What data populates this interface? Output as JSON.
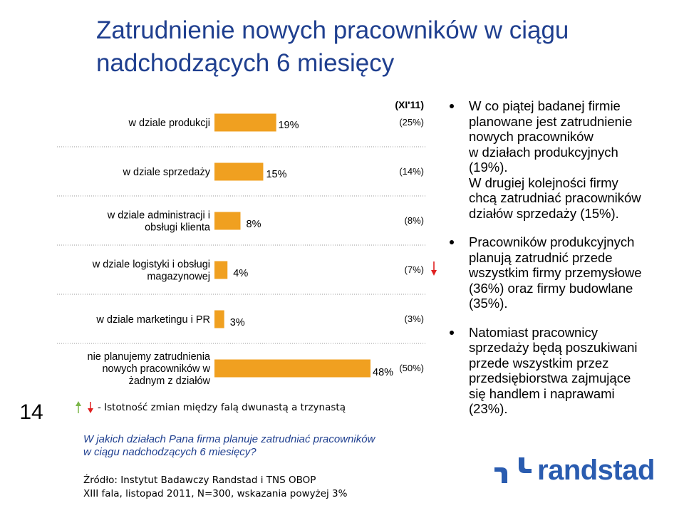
{
  "slide": {
    "title_line1": "Zatrudnienie nowych pracowników w ciągu",
    "title_line2": "nadchodzących 6 miesięcy",
    "page_number": "14"
  },
  "chart_data": {
    "type": "bar",
    "orientation": "horizontal",
    "comparison_header": "(XI'11)",
    "categories": [
      [
        "w dziale produkcji"
      ],
      [
        "w dziale sprzedaży"
      ],
      [
        "w dziale administracji i",
        "obsługi klienta"
      ],
      [
        "w dziale logistyki i obsługi",
        "magazynowej"
      ],
      [
        "w dziale marketingu i PR"
      ],
      [
        "nie planujemy zatrudnienia",
        "nowych pracowników w",
        "żadnym z działów"
      ]
    ],
    "values": [
      19,
      15,
      8,
      4,
      3,
      48
    ],
    "value_labels": [
      "19%",
      "15%",
      "8%",
      "4%",
      "3%",
      "48%"
    ],
    "comparison_labels": [
      "(25%)",
      "(14%)",
      "(8%)",
      "(7%)",
      "(3%)",
      "(50%)"
    ],
    "change_markers": [
      "",
      "",
      "",
      "down",
      "",
      ""
    ],
    "xlim": [
      0,
      48
    ],
    "bar_color": "#f0a020",
    "up_color": "#7ab648",
    "down_color": "#e02020"
  },
  "legend": {
    "text": "- Istotność zmian między falą dwunastą a trzynastą"
  },
  "bullets": [
    [
      "W co piątej badanej firmie",
      "planowane jest zatrudnienie",
      "nowych pracowników",
      "w działach produkcyjnych",
      "(19%).",
      "W drugiej kolejności firmy",
      "chcą zatrudniać pracowników",
      "działów sprzedaży (15%)."
    ],
    [
      "Pracowników produkcyjnych",
      "planują zatrudnić przede",
      "wszystkim firmy przemysłowe",
      "(36%) oraz  firmy budowlane",
      "(35%)."
    ],
    [
      "Natomiast pracownicy",
      "sprzedaży będą poszukiwani",
      "przede wszystkim przez",
      "przedsiębiorstwa zajmujące",
      "się handlem i naprawami",
      "(23%)."
    ]
  ],
  "question": [
    "W jakich działach Pana firma planuje zatrudniać pracowników",
    "w ciągu nadchodzących 6 miesięcy?"
  ],
  "source": [
    "Źródło: Instytut Badawczy Randstad i TNS OBOP",
    "XIII fala, listopad 2011, N=300, wskazania powyżej 3%"
  ],
  "logo": {
    "text": "randstad",
    "color": "#2a5cb0"
  }
}
